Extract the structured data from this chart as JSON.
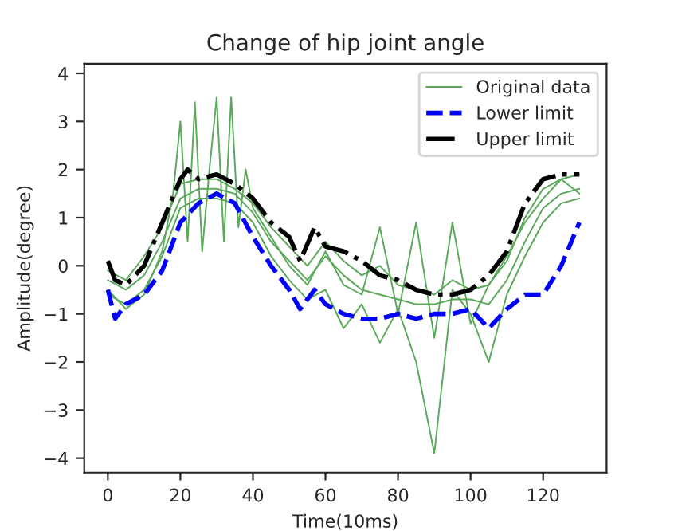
{
  "chart_data": {
    "type": "line",
    "title": "Change of hip joint angle",
    "xlabel": "Time(10ms)",
    "ylabel": "Amplitude(degree)",
    "xlim": [
      -6.5,
      137.5
    ],
    "ylim": [
      -4.3,
      4.2
    ],
    "xticks": [
      0,
      20,
      40,
      60,
      80,
      100,
      120
    ],
    "yticks": [
      -4,
      -3,
      -2,
      -1,
      0,
      1,
      2,
      3,
      4
    ],
    "grid": false,
    "legend": "top right",
    "series": [
      {
        "name": "Original data",
        "color": "#5aa85a",
        "line_style": "solid",
        "x": [
          0,
          5,
          10,
          15,
          20,
          25,
          30,
          35,
          40,
          45,
          50,
          55,
          60,
          65,
          70,
          75,
          80,
          85,
          90,
          95,
          100,
          105,
          110,
          115,
          120,
          125,
          130
        ],
        "values": [
          -0.3,
          -0.5,
          -0.2,
          0.5,
          1.4,
          1.6,
          1.6,
          1.5,
          1.1,
          0.5,
          0.1,
          -0.3,
          0.2,
          -0.2,
          -0.5,
          -0.6,
          -0.7,
          -0.8,
          -0.8,
          -0.7,
          -0.7,
          -0.8,
          -0.3,
          0.5,
          1.2,
          1.5,
          1.6
        ]
      },
      {
        "color": "#5aa85a",
        "line_style": "solid",
        "x": [
          0,
          5,
          10,
          15,
          18,
          20,
          22,
          24,
          26,
          28,
          30,
          32,
          34,
          36,
          38,
          40,
          45,
          50,
          55,
          60,
          65,
          70,
          75,
          80,
          85,
          90,
          95,
          100,
          105,
          110,
          115,
          120,
          125,
          130
        ],
        "values": [
          -0.5,
          -0.9,
          -0.6,
          0.3,
          1.5,
          3.0,
          0.5,
          3.4,
          0.3,
          2.0,
          3.5,
          0.5,
          3.5,
          0.8,
          2.0,
          1.2,
          0.6,
          0.0,
          -0.4,
          0.3,
          -0.4,
          -0.6,
          0.8,
          -1.0,
          0.9,
          -1.5,
          0.9,
          -1.2,
          -0.4,
          0.2,
          0.9,
          1.4,
          1.8,
          1.5
        ]
      },
      {
        "color": "#5aa85a",
        "line_style": "solid",
        "x": [
          0,
          5,
          10,
          15,
          20,
          25,
          30,
          35,
          40,
          45,
          50,
          55,
          60,
          65,
          70,
          75,
          80,
          85,
          90,
          95,
          100,
          105,
          110,
          115,
          120,
          125,
          130
        ],
        "values": [
          -0.6,
          -0.8,
          -0.5,
          0.2,
          1.2,
          1.4,
          1.4,
          1.3,
          0.9,
          0.2,
          -0.3,
          -0.7,
          -0.5,
          -1.3,
          -0.8,
          -1.6,
          -0.9,
          -2.0,
          -3.9,
          -0.5,
          -1.0,
          -2.0,
          -0.6,
          0.2,
          0.9,
          1.3,
          1.4
        ]
      },
      {
        "color": "#5aa85a",
        "line_style": "solid",
        "x": [
          0,
          5,
          10,
          15,
          20,
          25,
          30,
          35,
          40,
          45,
          50,
          55,
          60,
          65,
          70,
          75,
          80,
          85,
          90,
          95,
          100,
          105,
          110,
          115,
          120,
          125,
          130
        ],
        "values": [
          -0.1,
          -0.3,
          0.2,
          0.8,
          1.7,
          1.8,
          1.8,
          1.6,
          1.3,
          0.8,
          0.4,
          0.0,
          0.5,
          0.1,
          -0.2,
          0.0,
          -0.4,
          -0.5,
          -0.6,
          -0.3,
          -0.5,
          -0.4,
          0.1,
          1.0,
          1.6,
          1.8,
          1.9
        ]
      },
      {
        "name": "Lower limit",
        "color": "#0000ff",
        "line_style": "dashed",
        "x": [
          0,
          2,
          5,
          10,
          15,
          20,
          25,
          30,
          35,
          40,
          45,
          50,
          53,
          57,
          60,
          65,
          70,
          75,
          80,
          85,
          90,
          95,
          100,
          105,
          110,
          115,
          120,
          125,
          130
        ],
        "values": [
          -0.5,
          -1.1,
          -0.8,
          -0.6,
          -0.1,
          0.9,
          1.3,
          1.5,
          1.3,
          0.6,
          0.0,
          -0.5,
          -0.9,
          -0.5,
          -0.8,
          -1.0,
          -1.1,
          -1.1,
          -1.0,
          -1.1,
          -1.0,
          -1.0,
          -0.9,
          -1.3,
          -0.9,
          -0.6,
          -0.6,
          0.0,
          0.9
        ]
      },
      {
        "name": "Upper limit",
        "color": "#000000",
        "line_style": "dashdot",
        "x": [
          0,
          2,
          5,
          10,
          15,
          20,
          22,
          25,
          30,
          35,
          40,
          45,
          50,
          53,
          57,
          60,
          65,
          70,
          75,
          80,
          85,
          90,
          95,
          100,
          105,
          110,
          115,
          120,
          125,
          130
        ],
        "values": [
          0.1,
          -0.3,
          -0.4,
          0.0,
          0.9,
          1.8,
          2.0,
          1.8,
          1.9,
          1.7,
          1.4,
          0.9,
          0.6,
          0.1,
          0.8,
          0.4,
          0.3,
          0.1,
          -0.2,
          -0.3,
          -0.5,
          -0.6,
          -0.6,
          -0.5,
          -0.2,
          0.3,
          1.3,
          1.8,
          1.9,
          1.9
        ]
      }
    ]
  }
}
